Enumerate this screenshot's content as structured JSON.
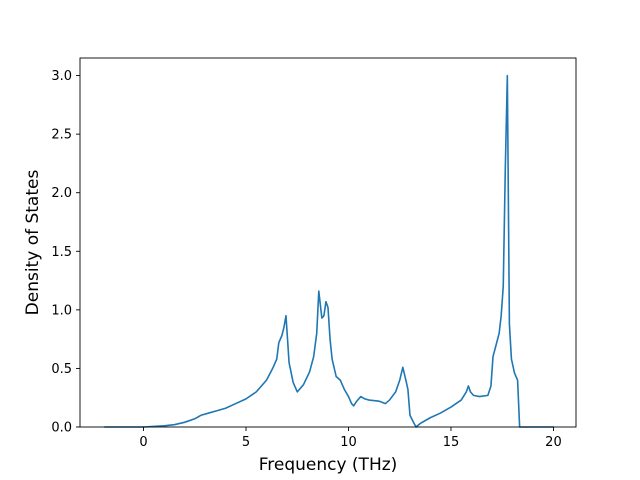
{
  "chart_data": {
    "type": "line",
    "title": "",
    "xlabel": "Frequency (THz)",
    "ylabel": "Density of States",
    "xlim": [
      -3.1,
      21.1
    ],
    "ylim": [
      0.0,
      3.15
    ],
    "xticks": [
      0,
      5,
      10,
      15,
      20
    ],
    "yticks": [
      0.0,
      0.5,
      1.0,
      1.5,
      2.0,
      2.5,
      3.0
    ],
    "xtick_labels": [
      "0",
      "5",
      "10",
      "15",
      "20"
    ],
    "ytick_labels": [
      "0.0",
      "0.5",
      "1.0",
      "1.5",
      "2.0",
      "2.5",
      "3.0"
    ],
    "grid": false,
    "legend": "none",
    "line_color": "#1f77b4",
    "series": [
      {
        "x": [
          -1.9,
          -0.5,
          0.0,
          0.5,
          1.0,
          1.5,
          2.0,
          2.5,
          2.8,
          3.2,
          3.6,
          4.0,
          4.5,
          5.0,
          5.5,
          6.0,
          6.3,
          6.5,
          6.6,
          6.75,
          6.85,
          6.95,
          7.1,
          7.3,
          7.5,
          7.8,
          8.1,
          8.3,
          8.45,
          8.55,
          8.7,
          8.8,
          8.9,
          9.0,
          9.1,
          9.2,
          9.4,
          9.6,
          9.8,
          10.0,
          10.15,
          10.25,
          10.4,
          10.6,
          10.8,
          11.0,
          11.5,
          11.8,
          12.0,
          12.3,
          12.5,
          12.65,
          12.8,
          12.9,
          13.0,
          13.2,
          13.3,
          13.5,
          14.0,
          14.5,
          15.0,
          15.5,
          15.75,
          15.85,
          15.95,
          16.1,
          16.4,
          16.8,
          16.95,
          17.05,
          17.2,
          17.35,
          17.45,
          17.55,
          17.65,
          17.75,
          17.85,
          17.95,
          18.1,
          18.25,
          18.35,
          18.5,
          19.0,
          19.5,
          20.0
        ],
        "y": [
          0.0,
          0.0,
          0.0,
          0.005,
          0.01,
          0.02,
          0.04,
          0.07,
          0.1,
          0.12,
          0.14,
          0.16,
          0.2,
          0.24,
          0.3,
          0.4,
          0.5,
          0.58,
          0.72,
          0.78,
          0.85,
          0.95,
          0.55,
          0.38,
          0.3,
          0.36,
          0.47,
          0.6,
          0.8,
          1.16,
          0.93,
          0.95,
          1.07,
          1.02,
          0.75,
          0.58,
          0.43,
          0.4,
          0.32,
          0.26,
          0.2,
          0.18,
          0.22,
          0.26,
          0.24,
          0.23,
          0.22,
          0.2,
          0.23,
          0.3,
          0.4,
          0.51,
          0.4,
          0.32,
          0.1,
          0.03,
          0.0,
          0.03,
          0.08,
          0.12,
          0.17,
          0.23,
          0.3,
          0.35,
          0.3,
          0.27,
          0.26,
          0.27,
          0.35,
          0.6,
          0.7,
          0.8,
          0.95,
          1.2,
          2.2,
          3.0,
          0.88,
          0.58,
          0.46,
          0.4,
          0.0,
          0.0,
          0.0,
          0.0,
          0.0
        ]
      }
    ]
  }
}
